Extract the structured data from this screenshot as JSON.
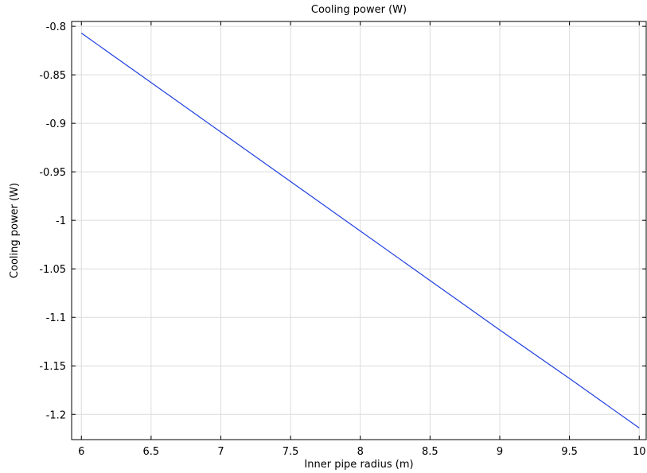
{
  "chart_data": {
    "type": "line",
    "title": "Cooling power (W)",
    "xlabel": "Inner pipe radius (m)",
    "ylabel": "Cooling power (W)",
    "xlim": [
      5.93,
      10.05
    ],
    "ylim": [
      -1.226,
      -0.795
    ],
    "x_ticks": [
      6,
      6.5,
      7,
      7.5,
      8,
      8.5,
      9,
      9.5,
      10
    ],
    "x_tick_labels": [
      "6",
      "6.5",
      "7",
      "7.5",
      "8",
      "8.5",
      "9",
      "9.5",
      "10"
    ],
    "y_ticks": [
      -0.8,
      -0.85,
      -0.9,
      -0.95,
      -1.0,
      -1.05,
      -1.1,
      -1.15,
      -1.2
    ],
    "y_tick_labels": [
      "-0.8",
      "-0.85",
      "-0.9",
      "-0.95",
      "-1",
      "-1.05",
      "-1.1",
      "-1.15",
      "-1.2"
    ],
    "grid": true,
    "series": [
      {
        "color": "#1f3fe0",
        "x": [
          6,
          6.5,
          7,
          7.5,
          8,
          8.5,
          9,
          9.5,
          10
        ],
        "y": [
          -0.807,
          -0.858,
          -0.909,
          -0.96,
          -1.011,
          -1.062,
          -1.113,
          -1.163,
          -1.214
        ]
      }
    ]
  }
}
